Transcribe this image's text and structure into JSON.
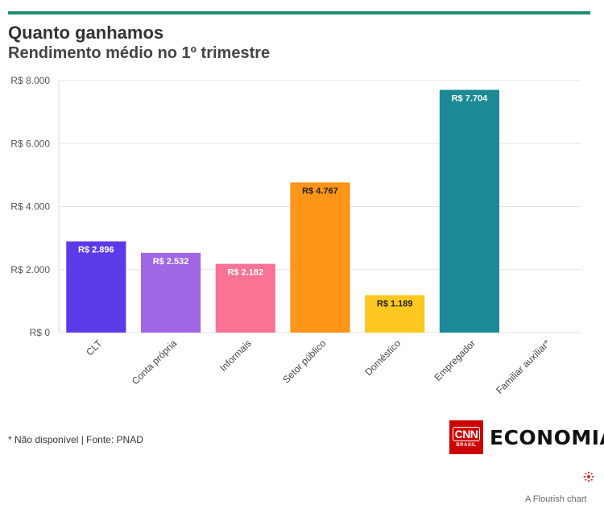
{
  "header": {
    "title": "Quanto ganhamos",
    "subtitle": "Rendimento médio no 1º trimestre"
  },
  "chart_data": {
    "type": "bar",
    "categories": [
      "CLT",
      "Conta própria",
      "Informais",
      "Setor público",
      "Doméstico",
      "Empregador",
      "Familiar auxiliar*"
    ],
    "values": [
      2896,
      2532,
      2182,
      4767,
      1189,
      7704,
      null
    ],
    "value_labels": [
      "R$ 2.896",
      "R$ 2.532",
      "R$ 2.182",
      "R$ 4.767",
      "R$ 1.189",
      "R$ 7.704",
      ""
    ],
    "colors": [
      "#5b3be8",
      "#a066e3",
      "#fa7394",
      "#ff9519",
      "#fdc921",
      "#1b8a96",
      "#cccccc"
    ],
    "label_colors": [
      "#ffffff",
      "#ffffff",
      "#ffffff",
      "#222222",
      "#222222",
      "#ffffff",
      "#222222"
    ],
    "y_ticks": [
      0,
      2000,
      4000,
      6000,
      8000
    ],
    "y_tick_labels": [
      "R$ 0",
      "R$ 2.000",
      "R$ 4.000",
      "R$ 6.000",
      "R$ 8.000"
    ],
    "ylim": [
      0,
      8000
    ],
    "grid": true
  },
  "footer": {
    "note": "* Não disponível | Fonte: PNAD",
    "logo_cnn": "CNN",
    "logo_cnn_sub": "BRASIL",
    "logo_economia": "ECONOMIA",
    "credit": "A Flourish chart"
  }
}
